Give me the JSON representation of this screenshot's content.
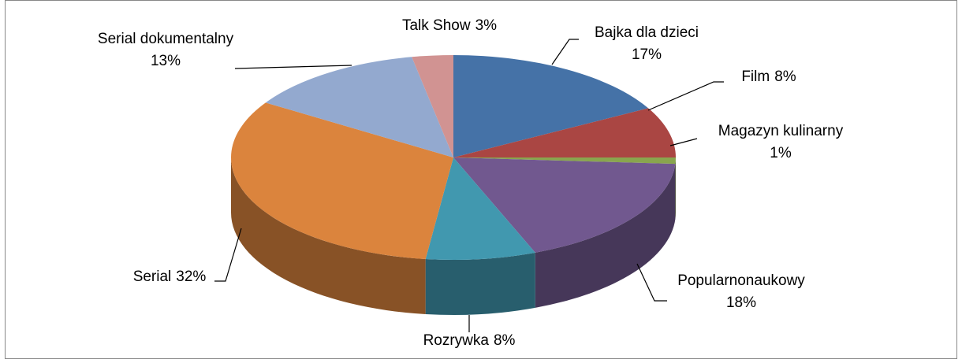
{
  "chart_data": {
    "type": "pie",
    "categories": [
      "Bajka dla dzieci",
      "Film",
      "Magazyn kulinarny",
      "Popularnonaukowy",
      "Rozrywka",
      "Serial",
      "Serial dokumentalny",
      "Talk Show"
    ],
    "values": [
      17,
      8,
      1,
      18,
      8,
      32,
      13,
      3
    ],
    "value_labels": [
      "17%",
      "8%",
      "1%",
      "18%",
      "8%",
      "32%",
      "13%",
      "3%"
    ],
    "colors": [
      "#4572a7",
      "#aa4643",
      "#89a54e",
      "#71588f",
      "#4198af",
      "#db843d",
      "#93a9cf",
      "#d19392"
    ]
  }
}
